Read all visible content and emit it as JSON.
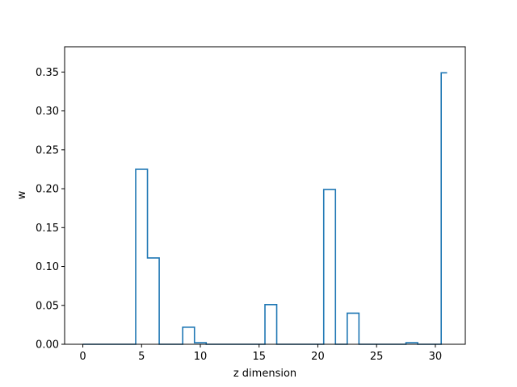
{
  "chart_data": {
    "type": "step",
    "xlabel": "z dimension",
    "ylabel": "w",
    "xlim": [
      -1.55,
      32.55
    ],
    "ylim": [
      0.0,
      0.3825
    ],
    "xticks": [
      0,
      5,
      10,
      15,
      20,
      25,
      30
    ],
    "yticks": [
      0.0,
      0.05,
      0.1,
      0.15,
      0.2,
      0.25,
      0.3,
      0.35
    ],
    "xtick_labels": [
      "0",
      "5",
      "10",
      "15",
      "20",
      "25",
      "30"
    ],
    "ytick_labels": [
      "0.00",
      "0.05",
      "0.10",
      "0.15",
      "0.20",
      "0.25",
      "0.30",
      "0.35"
    ],
    "step_where": "mid",
    "grid": false,
    "line_color": "#1f77b4",
    "x": [
      0,
      1,
      2,
      3,
      4,
      5,
      6,
      7,
      8,
      9,
      10,
      11,
      12,
      13,
      14,
      15,
      16,
      17,
      18,
      19,
      20,
      21,
      22,
      23,
      24,
      25,
      26,
      27,
      28,
      29,
      30,
      31
    ],
    "values": [
      0,
      0,
      0,
      0,
      0,
      0.225,
      0.111,
      0,
      0,
      0.022,
      0.002,
      0,
      0,
      0,
      0,
      0,
      0.051,
      0,
      0,
      0,
      0,
      0.199,
      0,
      0.04,
      0,
      0,
      0,
      0,
      0.002,
      0,
      0,
      0.349
    ]
  }
}
